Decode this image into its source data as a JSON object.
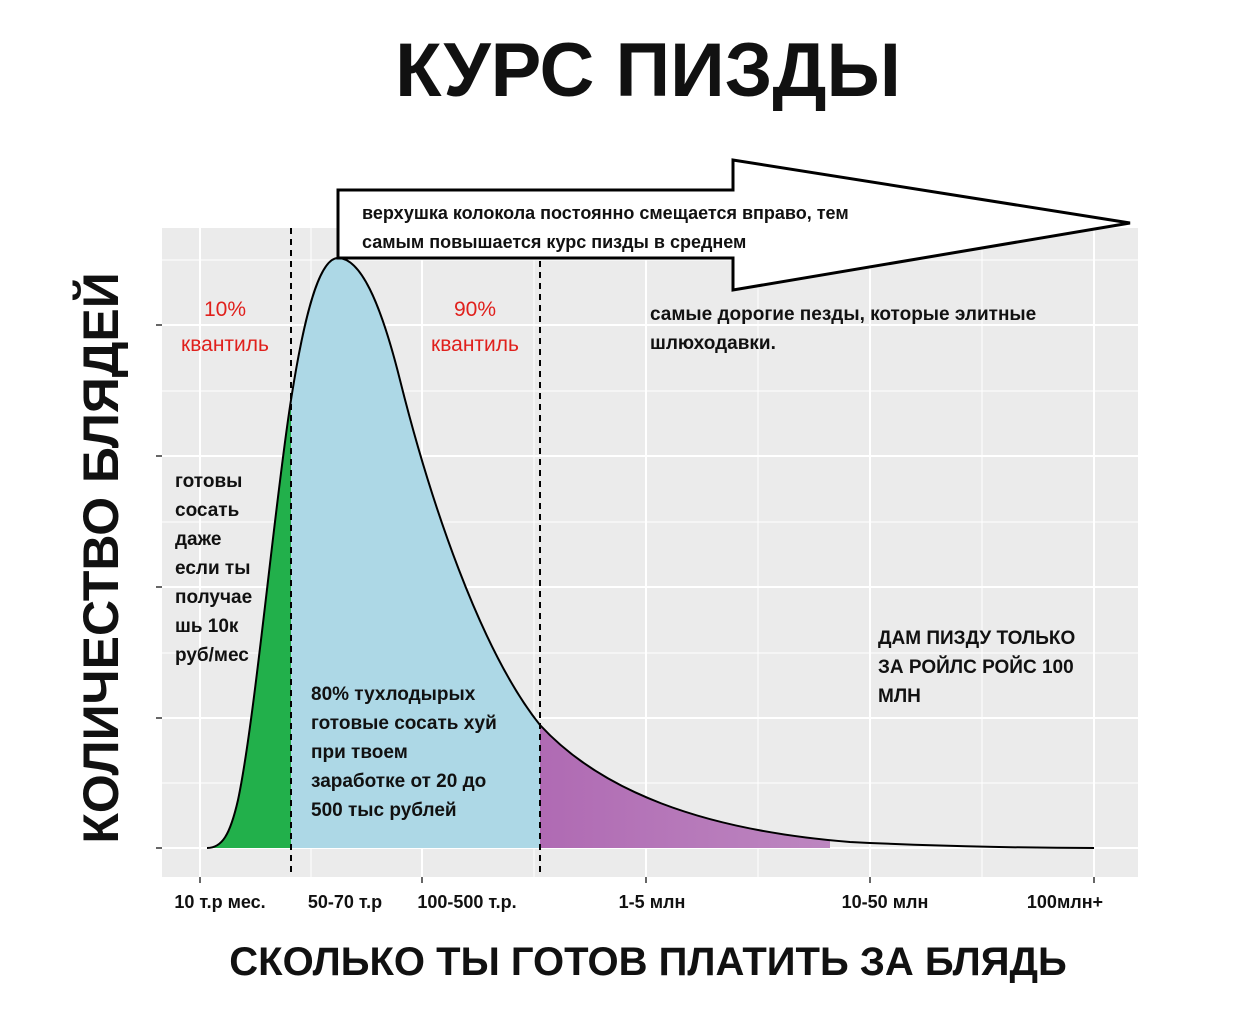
{
  "title": "КУРС ПИЗДЫ",
  "y_axis_title": "КОЛИЧЕСТВО БЛЯДЕЙ",
  "x_axis_title": "СКОЛЬКО ТЫ ГОТОВ ПЛАТИТЬ ЗА БЛЯДЬ",
  "x_labels": [
    "10 т.р мес.",
    "50-70 т.р",
    "100-500 т.р.",
    "1-5 млн",
    "10-50 млн",
    "100млн+"
  ],
  "arrow_text": [
    "верхушка колокола постоянно смещается вправо, тем",
    "самым повышается курс пизды в среднем"
  ],
  "quantiles": [
    {
      "percent": "10%",
      "label": "квантиль"
    },
    {
      "percent": "90%",
      "label": "квантиль"
    }
  ],
  "annotations": {
    "left": [
      "готовы",
      "сосать",
      "даже",
      "если ты",
      "получае",
      "шь 10к",
      "руб/мес"
    ],
    "middle": [
      "80% тухлодырых",
      "готовые сосать хуй",
      "при твоем",
      "заработке от 20 до",
      "500 тыс рублей"
    ],
    "top_right": [
      "самые дорогие пезды, которые элитные",
      "шлюходавки."
    ],
    "right": [
      "ДАМ ПИЗДУ ТОЛЬКО",
      "ЗА РОЙЛС РОЙС 100",
      "МЛН"
    ]
  }
}
